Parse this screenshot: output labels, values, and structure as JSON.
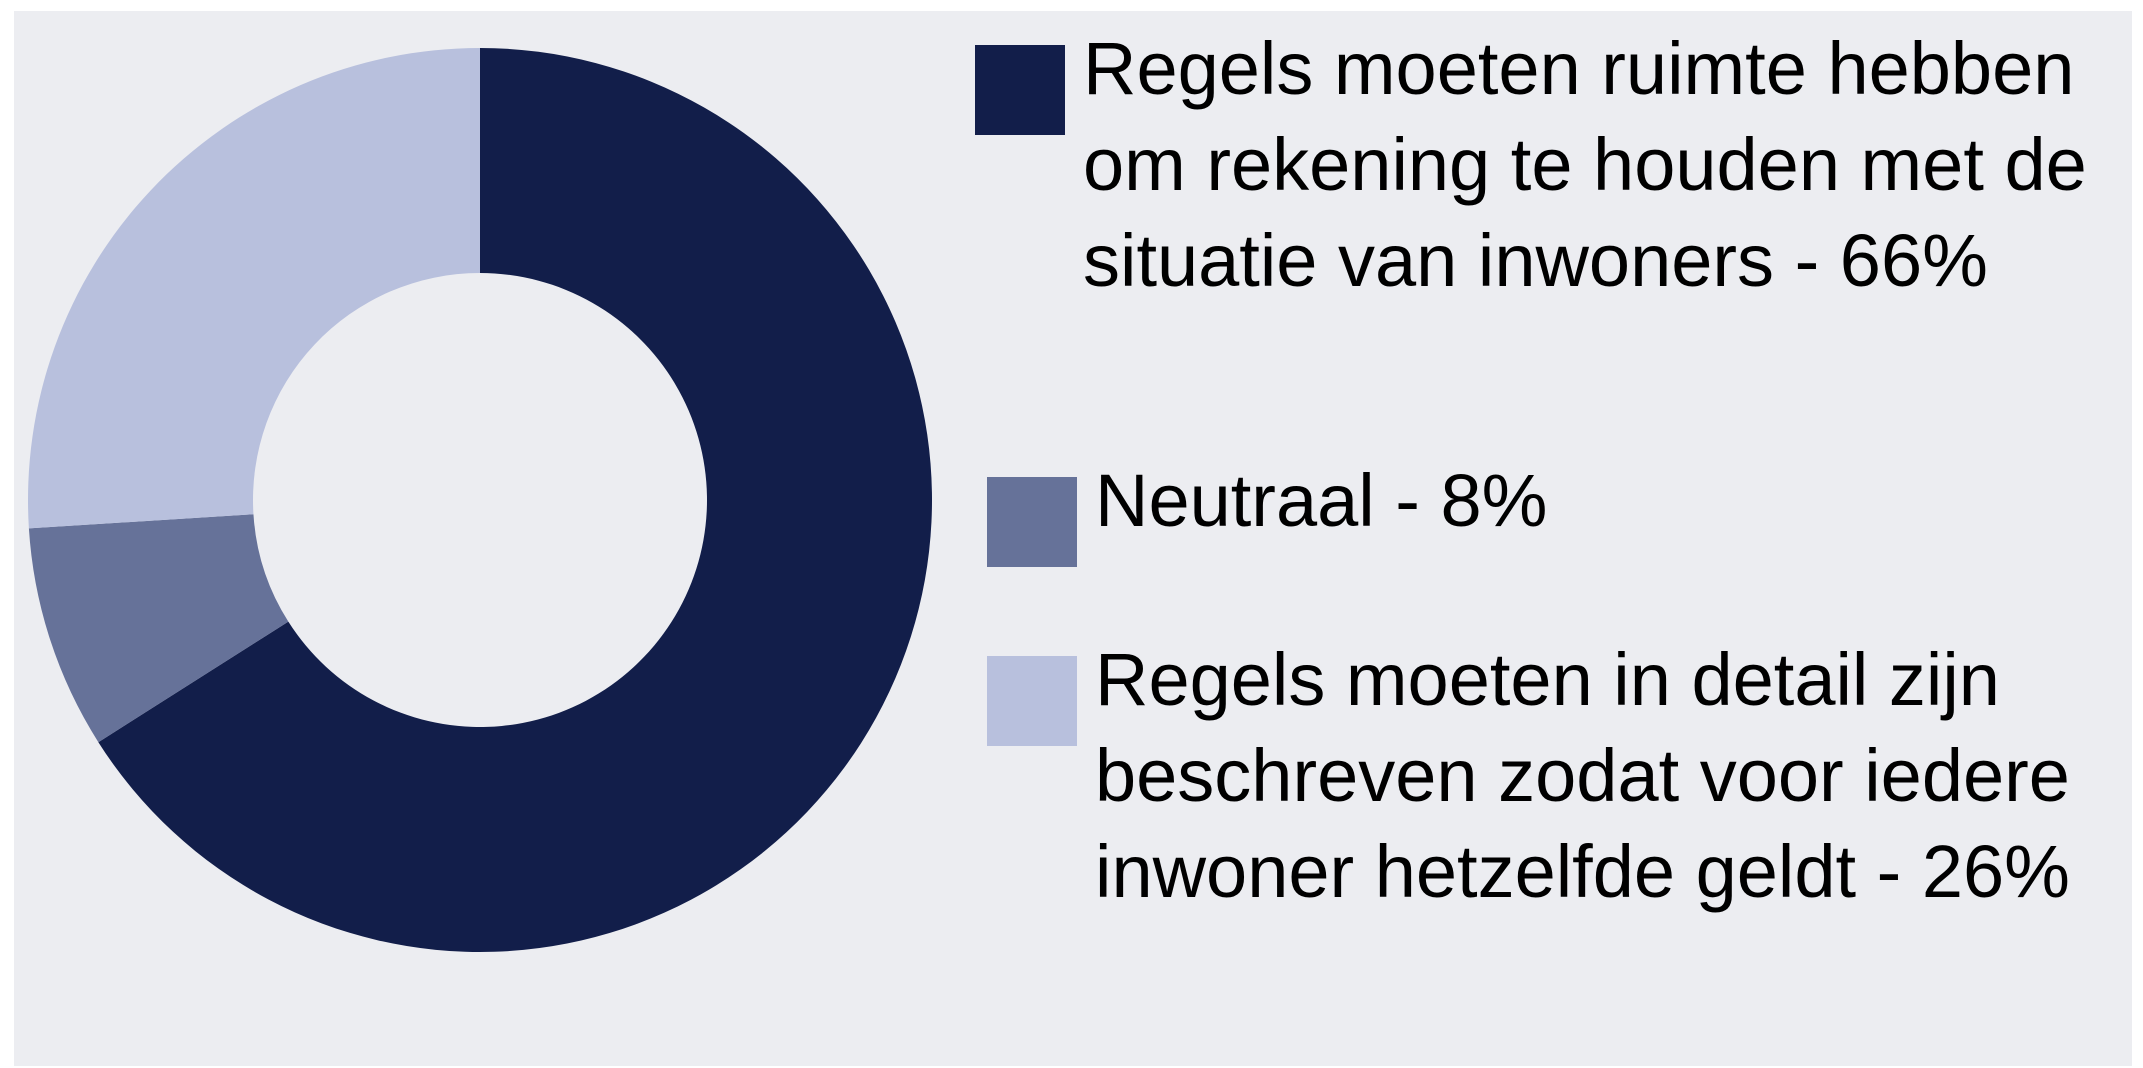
{
  "chart_data": {
    "type": "donut",
    "categories": [
      "Regels moeten ruimte hebben om rekening te houden met de situatie van inwoners - 66%",
      "Neutraal - 8%",
      "Regels moeten in detail zijn beschreven zodat voor iedere inwoner hetzelfde geldt - 26%"
    ],
    "values": [
      66,
      8,
      26
    ],
    "colors": [
      "#121e4a",
      "#667299",
      "#b8c0dd"
    ],
    "legend": "right"
  }
}
